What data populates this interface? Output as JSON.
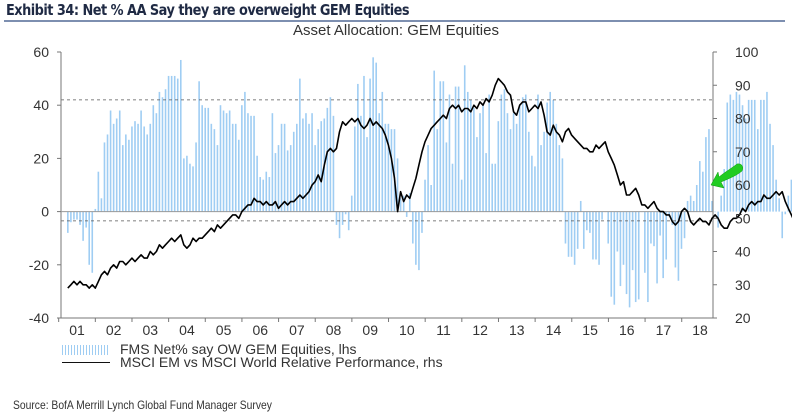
{
  "header": {
    "exhibit_title": "Exhibit 34: Net % AA Say they are overweight GEM Equities",
    "source": "Source:  BofA Merrill Lynch Global Fund Manager Survey"
  },
  "chart_data": {
    "type": "bar",
    "title": "Asset Allocation: GEM Equities",
    "xlabel": "",
    "ylabel": "",
    "x_tick_labels": [
      "01",
      "02",
      "03",
      "04",
      "05",
      "06",
      "07",
      "08",
      "09",
      "10",
      "11",
      "12",
      "13",
      "14",
      "15",
      "16",
      "17",
      "18"
    ],
    "left_axis": {
      "ylim": [
        -40,
        60
      ],
      "ticks": [
        -40,
        -20,
        0,
        20,
        40,
        60
      ],
      "reference_lines": [
        42,
        -3.5
      ]
    },
    "right_axis": {
      "ylim": [
        20,
        100
      ],
      "ticks": [
        20,
        30,
        40,
        50,
        60,
        70,
        80,
        90,
        100
      ]
    },
    "grid": false,
    "legend_position": "bottom-left",
    "start_year": 2000.75,
    "step_years": 0.0833,
    "series": [
      {
        "name": "FMS Net% say OW GEM Equities, lhs",
        "type": "bar",
        "axis": "left",
        "color": "#9fcdf3",
        "values": [
          -8,
          -4,
          -3,
          -3,
          -5,
          -11,
          -6,
          -20,
          -23,
          1,
          15,
          5,
          26,
          29,
          38,
          33,
          35,
          38,
          25,
          29,
          27,
          32,
          34,
          33,
          38,
          32,
          29,
          33,
          40,
          37,
          45,
          43,
          46,
          51,
          51,
          51,
          50,
          57,
          20,
          21,
          18,
          17,
          26,
          49,
          40,
          39,
          39,
          33,
          31,
          25,
          40,
          38,
          37,
          38,
          33,
          33,
          27,
          40,
          45,
          37,
          36,
          36,
          21,
          13,
          12,
          15,
          13,
          37,
          22,
          25,
          33,
          33,
          23,
          25,
          30,
          33,
          50,
          35,
          37,
          33,
          37,
          25,
          31,
          34,
          35,
          39,
          43,
          36,
          -5,
          -10,
          -5,
          -1,
          -7,
          6,
          32,
          48,
          36,
          51,
          28,
          50,
          58,
          56,
          37,
          45,
          33,
          33,
          31,
          31,
          20,
          5,
          6,
          -2,
          7,
          -12,
          -20,
          -22,
          -8,
          12,
          25,
          10,
          53,
          31,
          49,
          49,
          26,
          44,
          18,
          47,
          47,
          12,
          55,
          45,
          42,
          39,
          28,
          37,
          40,
          22,
          44,
          18,
          18,
          34,
          44,
          46,
          37,
          31,
          37,
          33,
          40,
          43,
          44,
          30,
          21,
          17,
          44,
          25,
          30,
          41,
          45,
          42,
          33,
          25,
          20,
          -12,
          -17,
          -17,
          -20,
          -14,
          4,
          -14,
          -7,
          -8,
          -18,
          -18,
          -20,
          -3,
          0,
          -12,
          -32,
          -35,
          -15,
          -28,
          -20,
          -31,
          -36,
          -22,
          -34,
          -33,
          0,
          -23,
          -34,
          -12,
          -13,
          -27,
          -9,
          -25,
          -18,
          -2,
          -5,
          -21,
          -26,
          -14,
          -10,
          4,
          6,
          4,
          10,
          19,
          15,
          28,
          31,
          4,
          0,
          -6,
          6,
          16,
          41,
          44,
          42,
          45,
          44,
          40,
          35,
          42,
          42,
          42,
          31,
          42,
          42,
          45,
          33,
          25,
          12,
          5,
          -10,
          -1,
          6,
          12
        ]
      },
      {
        "name": "MSCI EM vs MSCI World Relative Performance, rhs",
        "type": "line",
        "axis": "right",
        "color": "#000000",
        "values": [
          29,
          30,
          31,
          30,
          31,
          30,
          30,
          29,
          30,
          29,
          31,
          33,
          34,
          33,
          35,
          36,
          35,
          37,
          37,
          36,
          37,
          38,
          37,
          38,
          39,
          38,
          38,
          40,
          39,
          40,
          42,
          41,
          42,
          43,
          44,
          43,
          44,
          45,
          42,
          41,
          42,
          44,
          43,
          44,
          44,
          45,
          46,
          47,
          46,
          48,
          47,
          48,
          49,
          50,
          51,
          51,
          50,
          52,
          53,
          54,
          54,
          56,
          55,
          55,
          54,
          55,
          54,
          54,
          55,
          53,
          54,
          55,
          54,
          55,
          55,
          56,
          57,
          56,
          57,
          58,
          60,
          61,
          63,
          61,
          66,
          70,
          71,
          70,
          71,
          76,
          79,
          78,
          79,
          80,
          79,
          80,
          78,
          77,
          78,
          80,
          78,
          79,
          78,
          77,
          75,
          72,
          68,
          62,
          52,
          58,
          55,
          57,
          56,
          59,
          62,
          66,
          70,
          73,
          75,
          77,
          78,
          79,
          80,
          81,
          80,
          83,
          84,
          83,
          84,
          82,
          83,
          83,
          82,
          84,
          83,
          85,
          84,
          86,
          85,
          87,
          90,
          92,
          91,
          90,
          88,
          87,
          82,
          81,
          84,
          85,
          85,
          82,
          83,
          84,
          83,
          85,
          81,
          76,
          75,
          78,
          76,
          75,
          73,
          76,
          77,
          75,
          74,
          73,
          72,
          71,
          71,
          70,
          70,
          72,
          71,
          72,
          73,
          70,
          68,
          66,
          63,
          60,
          61,
          57,
          57,
          58,
          59,
          57,
          54,
          54,
          53,
          54,
          55,
          53,
          52,
          52,
          51,
          51,
          49,
          48,
          49,
          52,
          53,
          52,
          49,
          48,
          49,
          50,
          49,
          49,
          48,
          50,
          51,
          50,
          48,
          47,
          47,
          49,
          50,
          50,
          51,
          53,
          52,
          54,
          55,
          54,
          55,
          55,
          57,
          56,
          56,
          57,
          58,
          57,
          58,
          55,
          53,
          51,
          49,
          48,
          49,
          48
        ]
      }
    ]
  },
  "legend": {
    "items": [
      {
        "label": "FMS Net% say OW GEM Equities, lhs",
        "symbol": "bars"
      },
      {
        "label": "MSCI EM vs MSCI World Relative Performance, rhs",
        "symbol": "line"
      }
    ]
  },
  "annotation": {
    "icon": "green-arrow-icon",
    "color": "#22cc22",
    "points_to": "latest FMS reading"
  }
}
